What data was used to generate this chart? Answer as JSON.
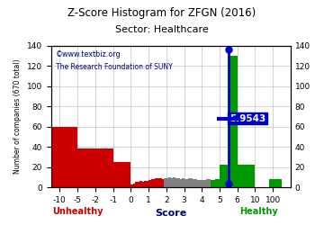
{
  "title": "Z-Score Histogram for ZFGN (2016)",
  "subtitle": "Sector: Healthcare",
  "watermark1": "©www.textbiz.org",
  "watermark2": "The Research Foundation of SUNY",
  "xlabel": "Score",
  "ylabel": "Number of companies (670 total)",
  "ylim": [
    0,
    140
  ],
  "zscore_label": "5.9543",
  "ytick_positions": [
    0,
    20,
    40,
    60,
    80,
    100,
    120,
    140
  ],
  "background_color": "#ffffff",
  "grid_color": "#aaaaaa",
  "title_color": "#000000",
  "subtitle_color": "#000000",
  "watermark1_color": "#000080",
  "watermark2_color": "#000080",
  "unhealthy_color": "#cc0000",
  "healthy_color": "#009900",
  "score_color": "#000080",
  "annotation_bg": "#0000cc",
  "annotation_fg": "#ffffff",
  "tick_keys": [
    -10,
    -5,
    -2,
    -1,
    0,
    1,
    2,
    3,
    4,
    5,
    6,
    10,
    100
  ],
  "tick_values": [
    0,
    1,
    2,
    3,
    4,
    5,
    6,
    7,
    8,
    9,
    10,
    11,
    12
  ],
  "bars": [
    [
      -0.5,
      1.0,
      60,
      "#cc0000"
    ],
    [
      1.0,
      2.0,
      38,
      "#cc0000"
    ],
    [
      2.0,
      3.0,
      38,
      "#cc0000"
    ],
    [
      3.0,
      4.0,
      25,
      "#cc0000"
    ],
    [
      4.0,
      4.125,
      3,
      "#cc0000"
    ],
    [
      4.125,
      4.25,
      4,
      "#cc0000"
    ],
    [
      4.25,
      4.375,
      5,
      "#cc0000"
    ],
    [
      4.375,
      4.5,
      5,
      "#cc0000"
    ],
    [
      4.5,
      4.625,
      6,
      "#cc0000"
    ],
    [
      4.625,
      4.75,
      5,
      "#cc0000"
    ],
    [
      4.75,
      4.875,
      6,
      "#cc0000"
    ],
    [
      4.875,
      5.0,
      6,
      "#cc0000"
    ],
    [
      5.0,
      5.125,
      7,
      "#cc0000"
    ],
    [
      5.125,
      5.25,
      8,
      "#cc0000"
    ],
    [
      5.25,
      5.375,
      8,
      "#cc0000"
    ],
    [
      5.375,
      5.5,
      9,
      "#cc0000"
    ],
    [
      5.5,
      5.625,
      9,
      "#cc0000"
    ],
    [
      5.625,
      5.75,
      9,
      "#cc0000"
    ],
    [
      5.75,
      5.875,
      8,
      "#cc0000"
    ],
    [
      5.875,
      6.0,
      9,
      "#808080"
    ],
    [
      6.0,
      6.125,
      9,
      "#808080"
    ],
    [
      6.125,
      6.25,
      10,
      "#808080"
    ],
    [
      6.25,
      6.375,
      9,
      "#808080"
    ],
    [
      6.375,
      6.5,
      10,
      "#808080"
    ],
    [
      6.5,
      6.625,
      9,
      "#808080"
    ],
    [
      6.625,
      6.75,
      9,
      "#808080"
    ],
    [
      6.75,
      6.875,
      8,
      "#808080"
    ],
    [
      6.875,
      7.0,
      9,
      "#808080"
    ],
    [
      7.0,
      7.25,
      8,
      "#808080"
    ],
    [
      7.25,
      7.5,
      9,
      "#808080"
    ],
    [
      7.5,
      7.75,
      8,
      "#808080"
    ],
    [
      7.75,
      8.0,
      7,
      "#808080"
    ],
    [
      8.0,
      8.25,
      7,
      "#808080"
    ],
    [
      8.25,
      8.5,
      8,
      "#808080"
    ],
    [
      8.5,
      8.75,
      7,
      "#009900"
    ],
    [
      8.75,
      9.0,
      8,
      "#009900"
    ],
    [
      9.0,
      9.5,
      22,
      "#009900"
    ],
    [
      9.5,
      10.0,
      130,
      "#009900"
    ],
    [
      10.0,
      11.0,
      22,
      "#009900"
    ],
    [
      11.8,
      12.5,
      8,
      "#009900"
    ]
  ]
}
